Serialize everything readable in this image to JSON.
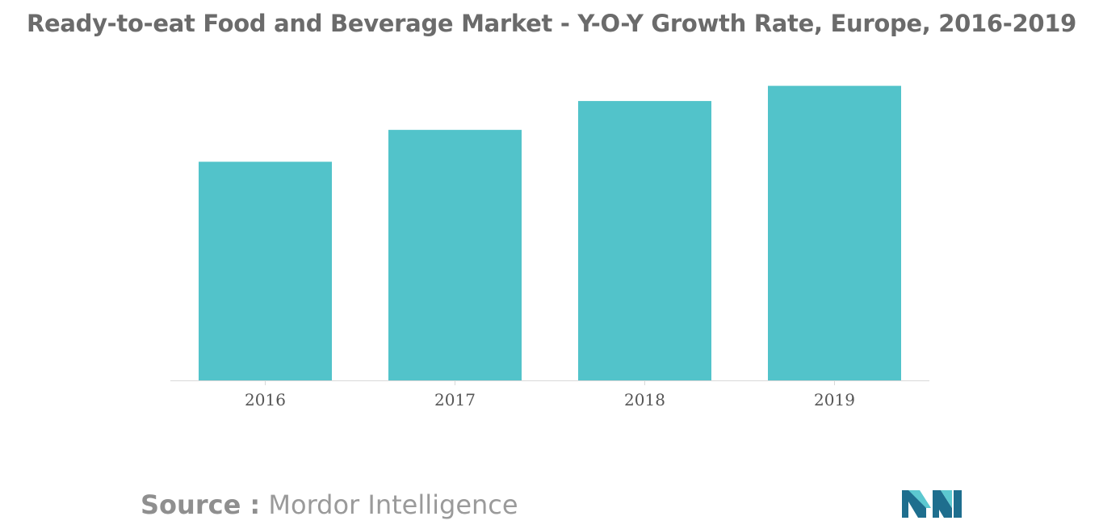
{
  "title": "Ready-to-eat Food and Beverage Market - Y-O-Y Growth Rate, Europe, 2016-2019",
  "source": {
    "label": "Source :",
    "name": "Mordor Intelligence"
  },
  "logo": {
    "icon": "mordor-intelligence-logo-icon"
  },
  "colors": {
    "bar": "#52c3ca",
    "axis": "#d9d9d9",
    "text": "#6b6b6b",
    "logo_dark": "#1e6e8e",
    "logo_light": "#5cc8d0"
  },
  "chart_data": {
    "type": "bar",
    "title": "Ready-to-eat Food and Beverage Market - Y-O-Y Growth Rate, Europe, 2016-2019",
    "categories": [
      "2016",
      "2017",
      "2018",
      "2019"
    ],
    "values": [
      72,
      82.5,
      92,
      97
    ],
    "ylim": [
      0,
      100
    ],
    "xlabel": "",
    "ylabel": "",
    "grid": false,
    "legend": "none"
  }
}
